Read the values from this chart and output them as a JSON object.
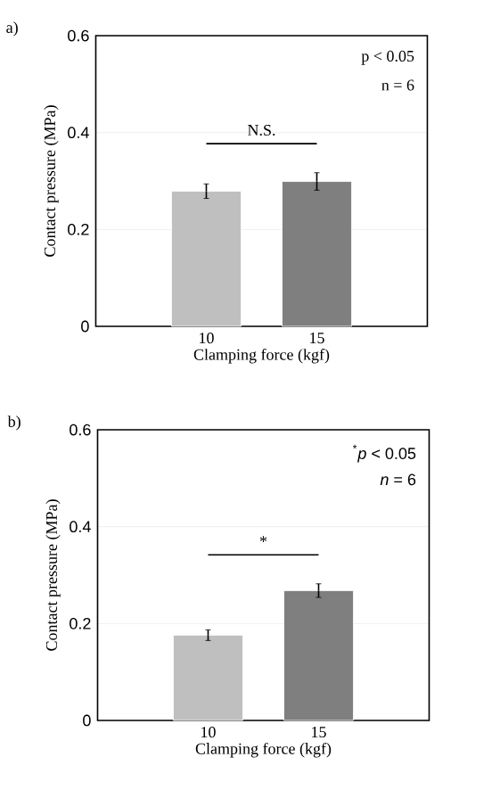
{
  "chart_data": [
    {
      "type": "bar",
      "categories": [
        "10",
        "15"
      ],
      "values": [
        0.279,
        0.299
      ],
      "errors": [
        0.015,
        0.018
      ],
      "colors": [
        "#bfbfbf",
        "#7f7f7f"
      ],
      "xlabel": "Clamping force (kgf)",
      "ylabel": "Contact pressure (MPa)",
      "ylim": [
        0,
        0.6
      ],
      "yticks": [
        0,
        0.2,
        0.4,
        0.6
      ],
      "grid": "y",
      "annotations": [
        "a)",
        "p < 0.05",
        "n = 6",
        "N.S."
      ]
    },
    {
      "type": "bar",
      "categories": [
        "10",
        "15"
      ],
      "values": [
        0.176,
        0.268
      ],
      "errors": [
        0.011,
        0.014
      ],
      "colors": [
        "#bfbfbf",
        "#7f7f7f"
      ],
      "xlabel": "Clamping force (kgf)",
      "ylabel": "Contact pressure (MPa)",
      "ylim": [
        0,
        0.6
      ],
      "yticks": [
        0,
        0.2,
        0.4,
        0.6
      ],
      "grid": "y",
      "annotations": [
        "b)",
        "$^{*}$*p* < 0.05",
        "*n* = 6",
        "*"
      ]
    }
  ]
}
